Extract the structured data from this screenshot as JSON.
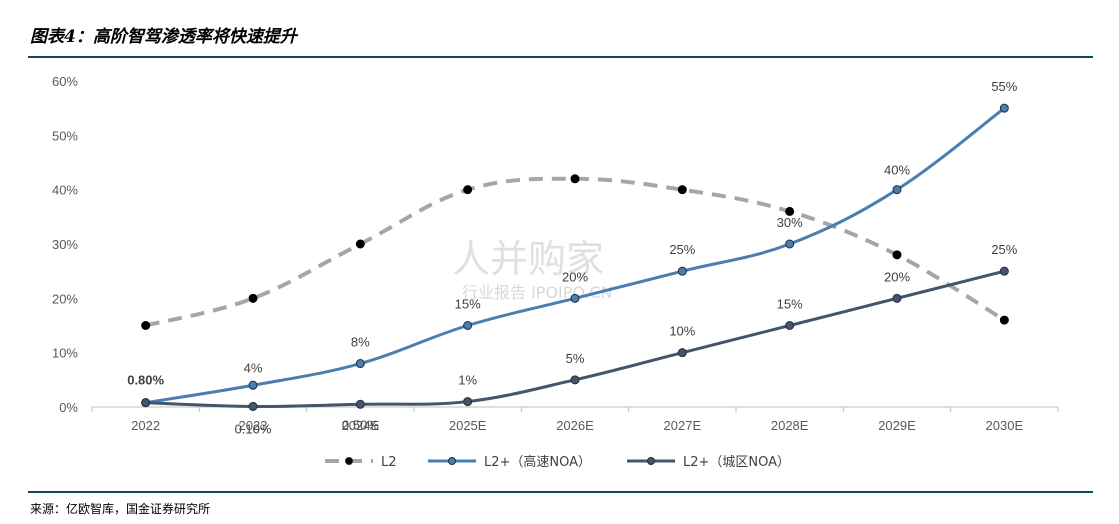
{
  "header": {
    "title": "图表4：高阶智驾渗透率将快速提升"
  },
  "footer": {
    "source": "来源：亿欧智库，国金证券研究所"
  },
  "watermark": {
    "main": "人并购家",
    "sub": "行业报告 IPOIPO.CN"
  },
  "chart_data": {
    "type": "line",
    "categories": [
      "2022",
      "2023",
      "2024E",
      "2025E",
      "2026E",
      "2027E",
      "2028E",
      "2029E",
      "2030E"
    ],
    "ylim": [
      0,
      60
    ],
    "yticks": [
      "0%",
      "10%",
      "20%",
      "30%",
      "40%",
      "50%",
      "60%"
    ],
    "grid": false,
    "legend_position": "bottom",
    "series": [
      {
        "name": "L2",
        "style": "dashed",
        "color": "#a6a6a6",
        "values": [
          15,
          20,
          30,
          40,
          42,
          40,
          36,
          28,
          16
        ],
        "labels": []
      },
      {
        "name": "L2+（高速NOA）",
        "style": "solid",
        "color": "#4a7eb0",
        "values": [
          0.8,
          4,
          8,
          15,
          20,
          25,
          30,
          40,
          55
        ],
        "labels": [
          "0.80%",
          "4%",
          "8%",
          "15%",
          "20%",
          "25%",
          "30%",
          "40%",
          "55%"
        ]
      },
      {
        "name": "L2+（城区NOA）",
        "style": "solid",
        "color": "#44546a",
        "values": [
          0.8,
          0.1,
          0.5,
          1,
          5,
          10,
          15,
          20,
          25
        ],
        "labels": [
          "",
          "0.10%",
          "0.50%",
          "1%",
          "5%",
          "10%",
          "15%",
          "20%",
          "25%"
        ]
      }
    ]
  }
}
